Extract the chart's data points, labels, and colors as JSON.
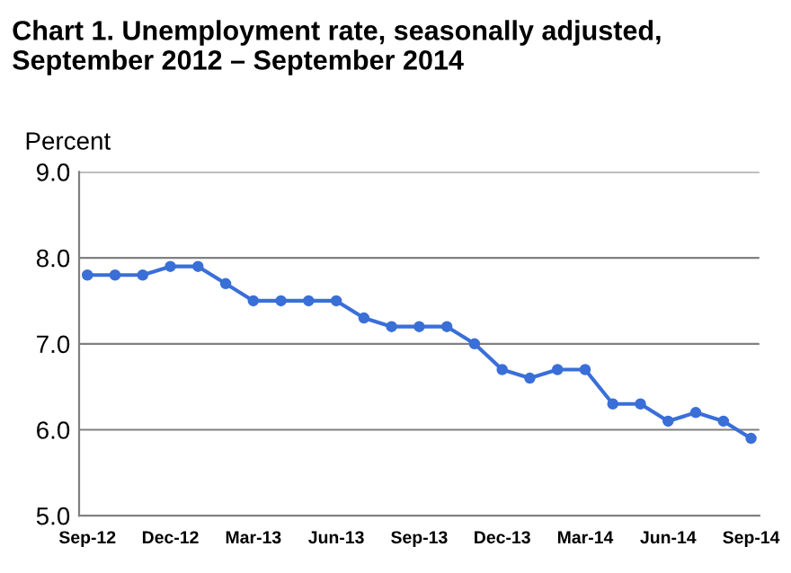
{
  "chart_data": {
    "type": "line",
    "title": "Chart 1. Unemployment rate, seasonally adjusted,\nSeptember 2012 – September 2014",
    "ylabel": "Percent",
    "categories": [
      "Sep-12",
      null,
      null,
      "Dec-12",
      null,
      null,
      "Mar-13",
      null,
      null,
      "Jun-13",
      null,
      null,
      "Sep-13",
      null,
      null,
      "Dec-13",
      null,
      null,
      "Mar-14",
      null,
      null,
      "Jun-14",
      null,
      null,
      "Sep-14"
    ],
    "series": [
      {
        "color": "#3a6fd8",
        "values": [
          7.8,
          7.8,
          7.8,
          7.9,
          7.9,
          7.7,
          7.5,
          7.5,
          7.5,
          7.5,
          7.3,
          7.2,
          7.2,
          7.2,
          7.0,
          6.7,
          6.6,
          6.7,
          6.7,
          6.3,
          6.3,
          6.1,
          6.2,
          6.1,
          5.9
        ]
      }
    ],
    "ylim": [
      5,
      9
    ],
    "yticks": [
      {
        "value": 5,
        "label": "5.0"
      },
      {
        "value": 6,
        "label": "6.0"
      },
      {
        "value": 7,
        "label": "7.0"
      },
      {
        "value": 8,
        "label": "8.0"
      },
      {
        "value": 9,
        "label": "9.0"
      }
    ],
    "grid": "y",
    "marker": "circle",
    "line_style": "solid",
    "legend": false
  }
}
